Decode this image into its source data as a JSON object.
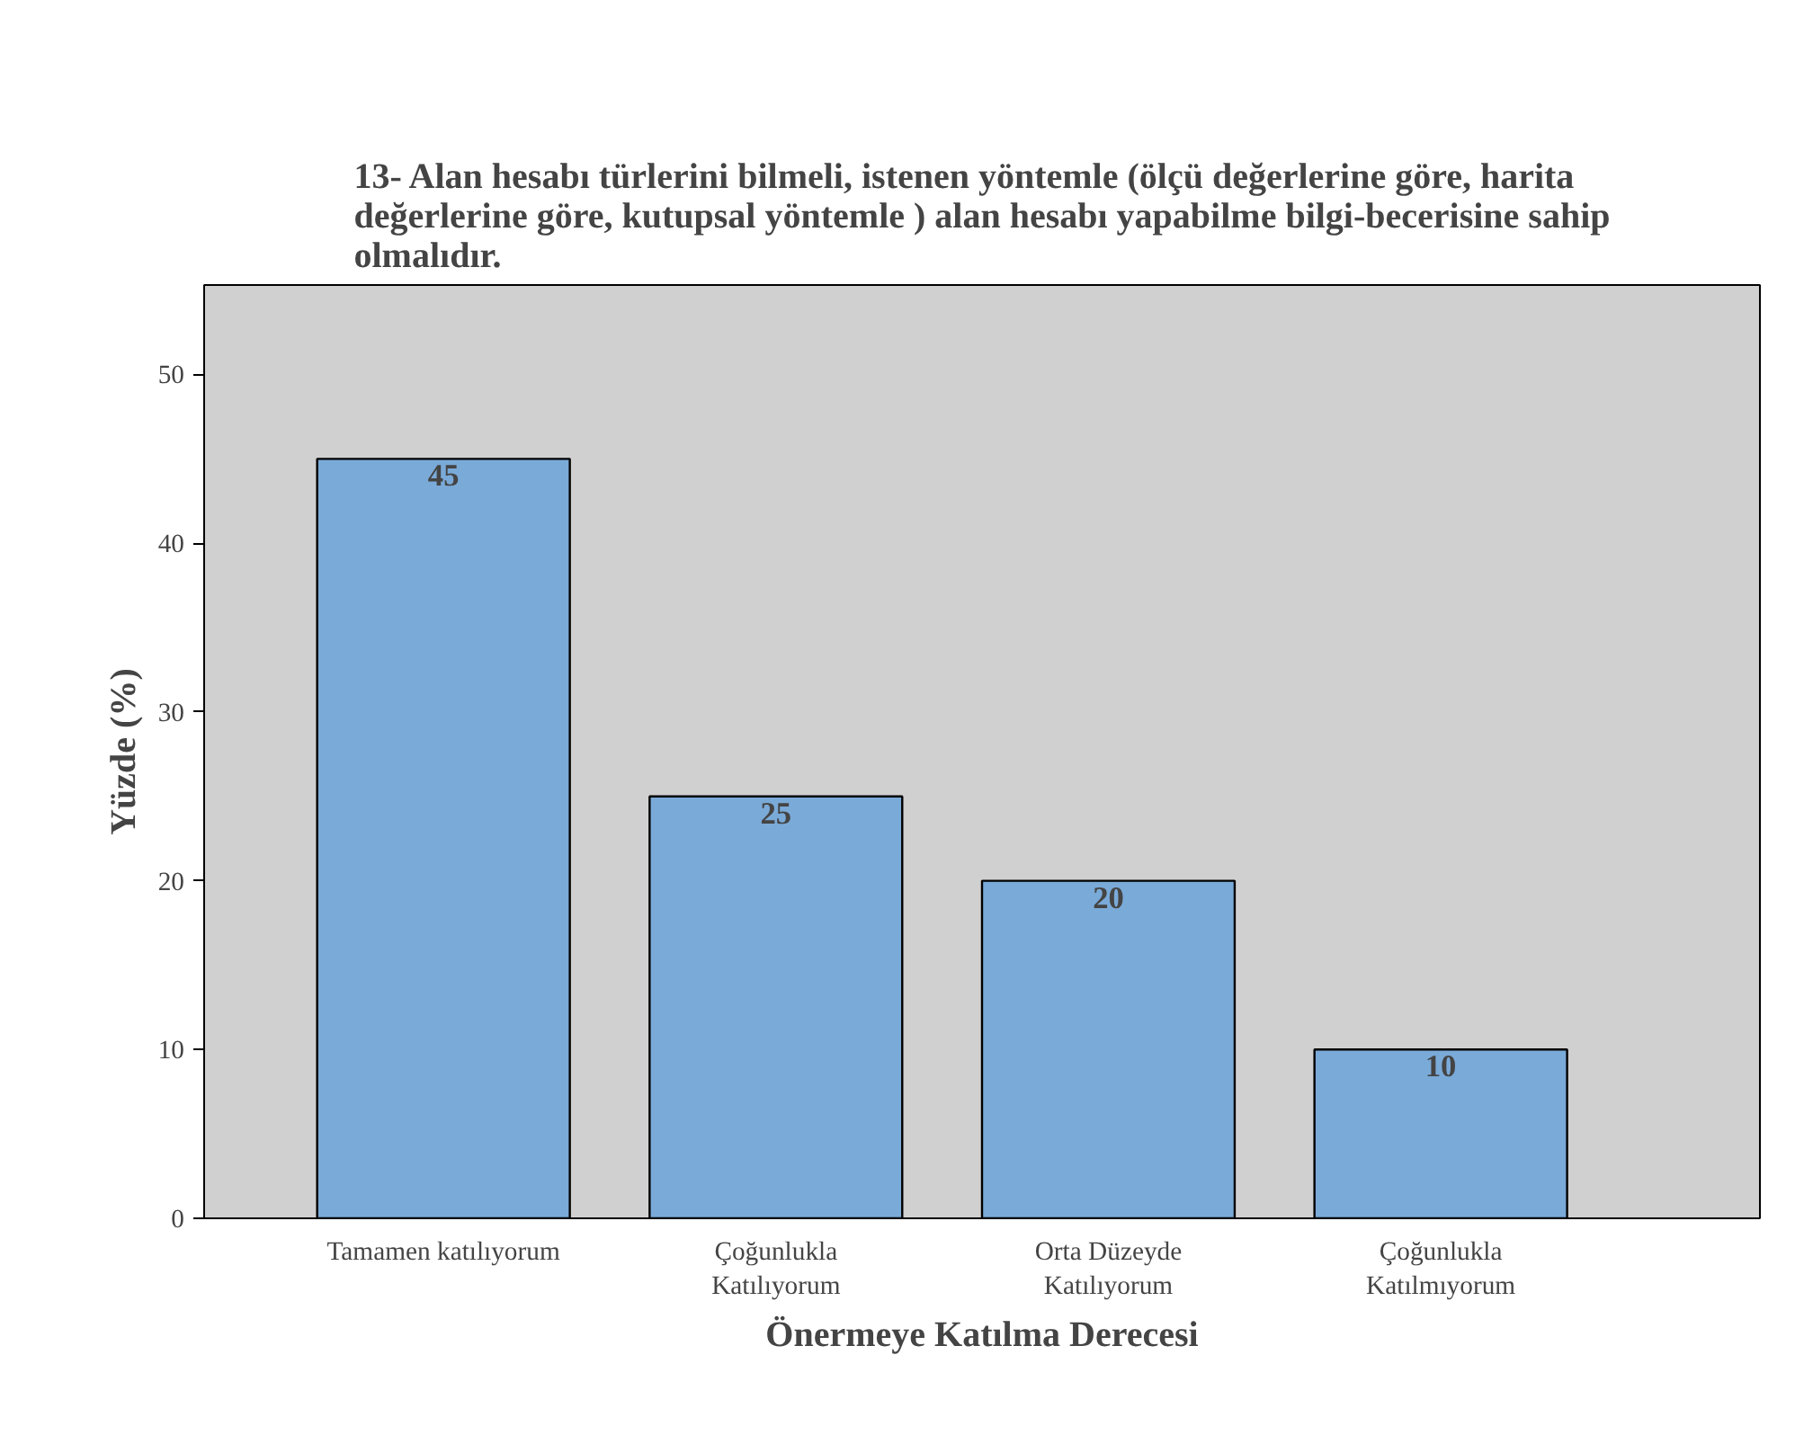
{
  "chart_data": {
    "type": "bar",
    "title": "13- Alan hesabı türlerini bilmeli, istenen yöntemle  (ölçü değerlerine göre, harita\ndeğerlerine göre, kutupsal yöntemle ) alan hesabı yapabilme bilgi-becerisine sahip\nolmalıdır.",
    "xlabel": "Önermeye Katılma Derecesi",
    "ylabel": "Yüzde (%)",
    "categories": [
      "Tamamen katılıyorum",
      "Çoğunlukla\nKatılıyorum",
      "Orta Düzeyde\nKatılıyorum",
      "Çoğunlukla\nKatılmıyorum"
    ],
    "values": [
      45,
      25,
      20,
      10
    ],
    "color": "#7aaad8",
    "ylim": [
      0,
      55.3
    ],
    "yticks": [
      0,
      10,
      20,
      30,
      40,
      50
    ],
    "grid": false,
    "data_labels": true
  }
}
